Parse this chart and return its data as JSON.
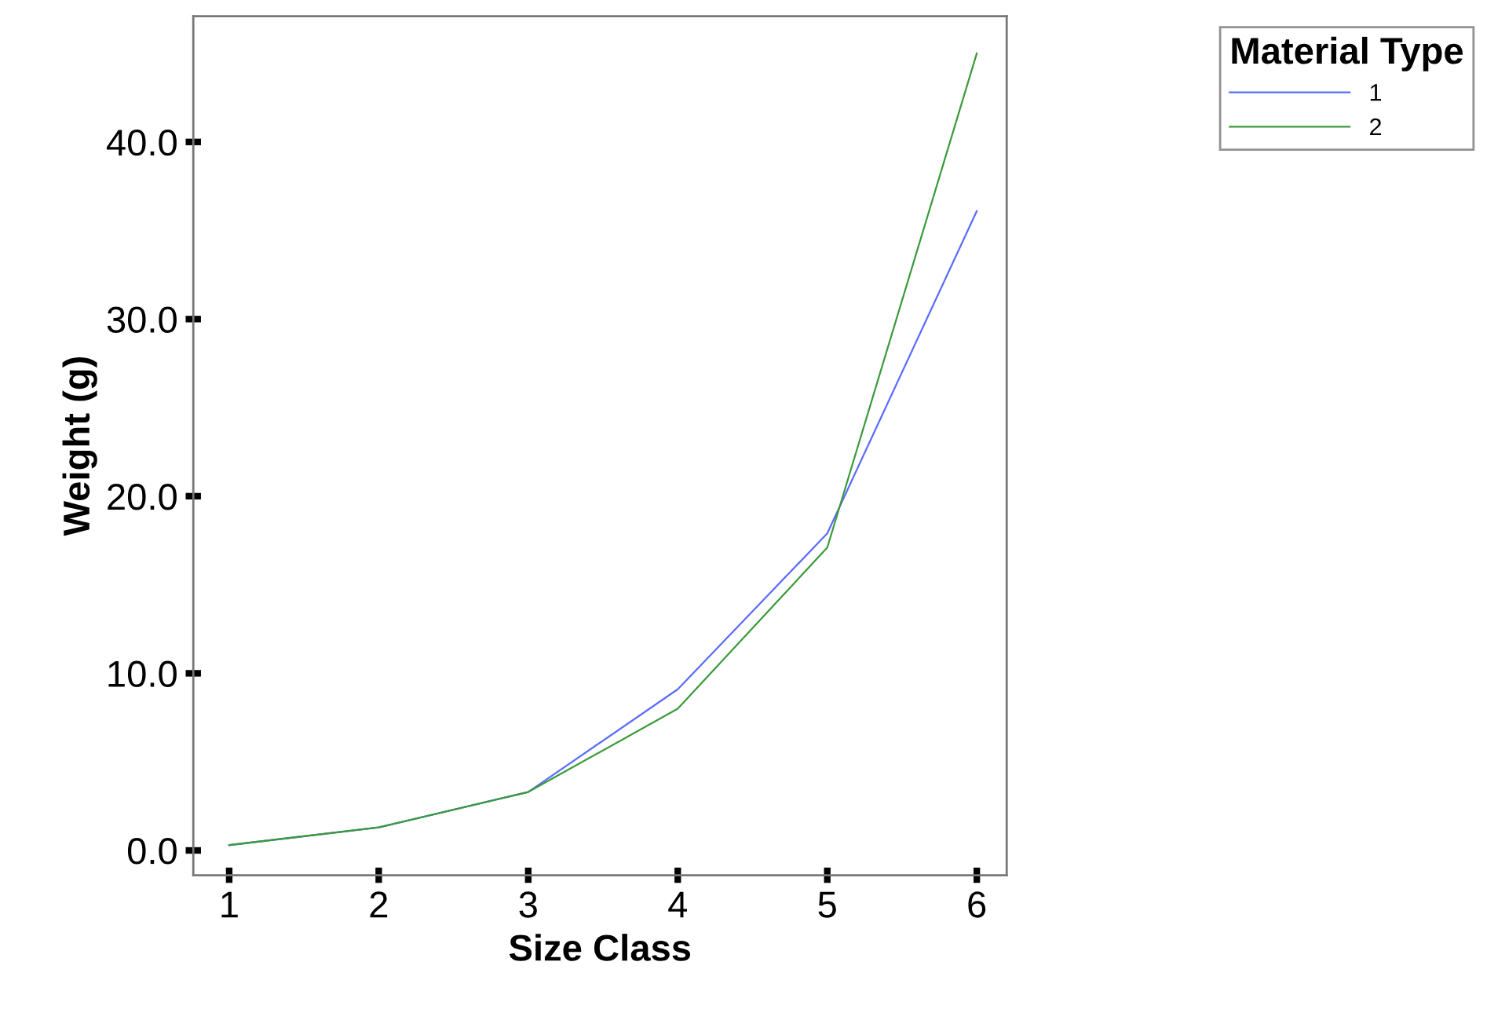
{
  "chart_data": {
    "type": "line",
    "xlabel": "Size Class",
    "ylabel": "Weight (g)",
    "legend_title": "Material Type",
    "x": [
      1,
      2,
      3,
      4,
      5,
      6
    ],
    "series": [
      {
        "name": "1",
        "color": "#5a6bff",
        "values": [
          0.3,
          1.3,
          3.3,
          9.1,
          17.9,
          36.1
        ]
      },
      {
        "name": "2",
        "color": "#3a9a3a",
        "values": [
          0.3,
          1.3,
          3.3,
          8.0,
          17.1,
          45.0
        ]
      }
    ],
    "xlim": [
      0.76,
      6.2
    ],
    "ylim": [
      -1.4,
      47.1
    ],
    "xticks": [
      1,
      2,
      3,
      4,
      5,
      6
    ],
    "yticks": [
      {
        "value": 0,
        "label": "0.0"
      },
      {
        "value": 10,
        "label": "10.0"
      },
      {
        "value": 20,
        "label": "20.0"
      },
      {
        "value": 30,
        "label": "30.0"
      },
      {
        "value": 40,
        "label": "40.0"
      }
    ],
    "grid": false,
    "legend": "top right",
    "marker": "none",
    "line_style": "solid"
  }
}
